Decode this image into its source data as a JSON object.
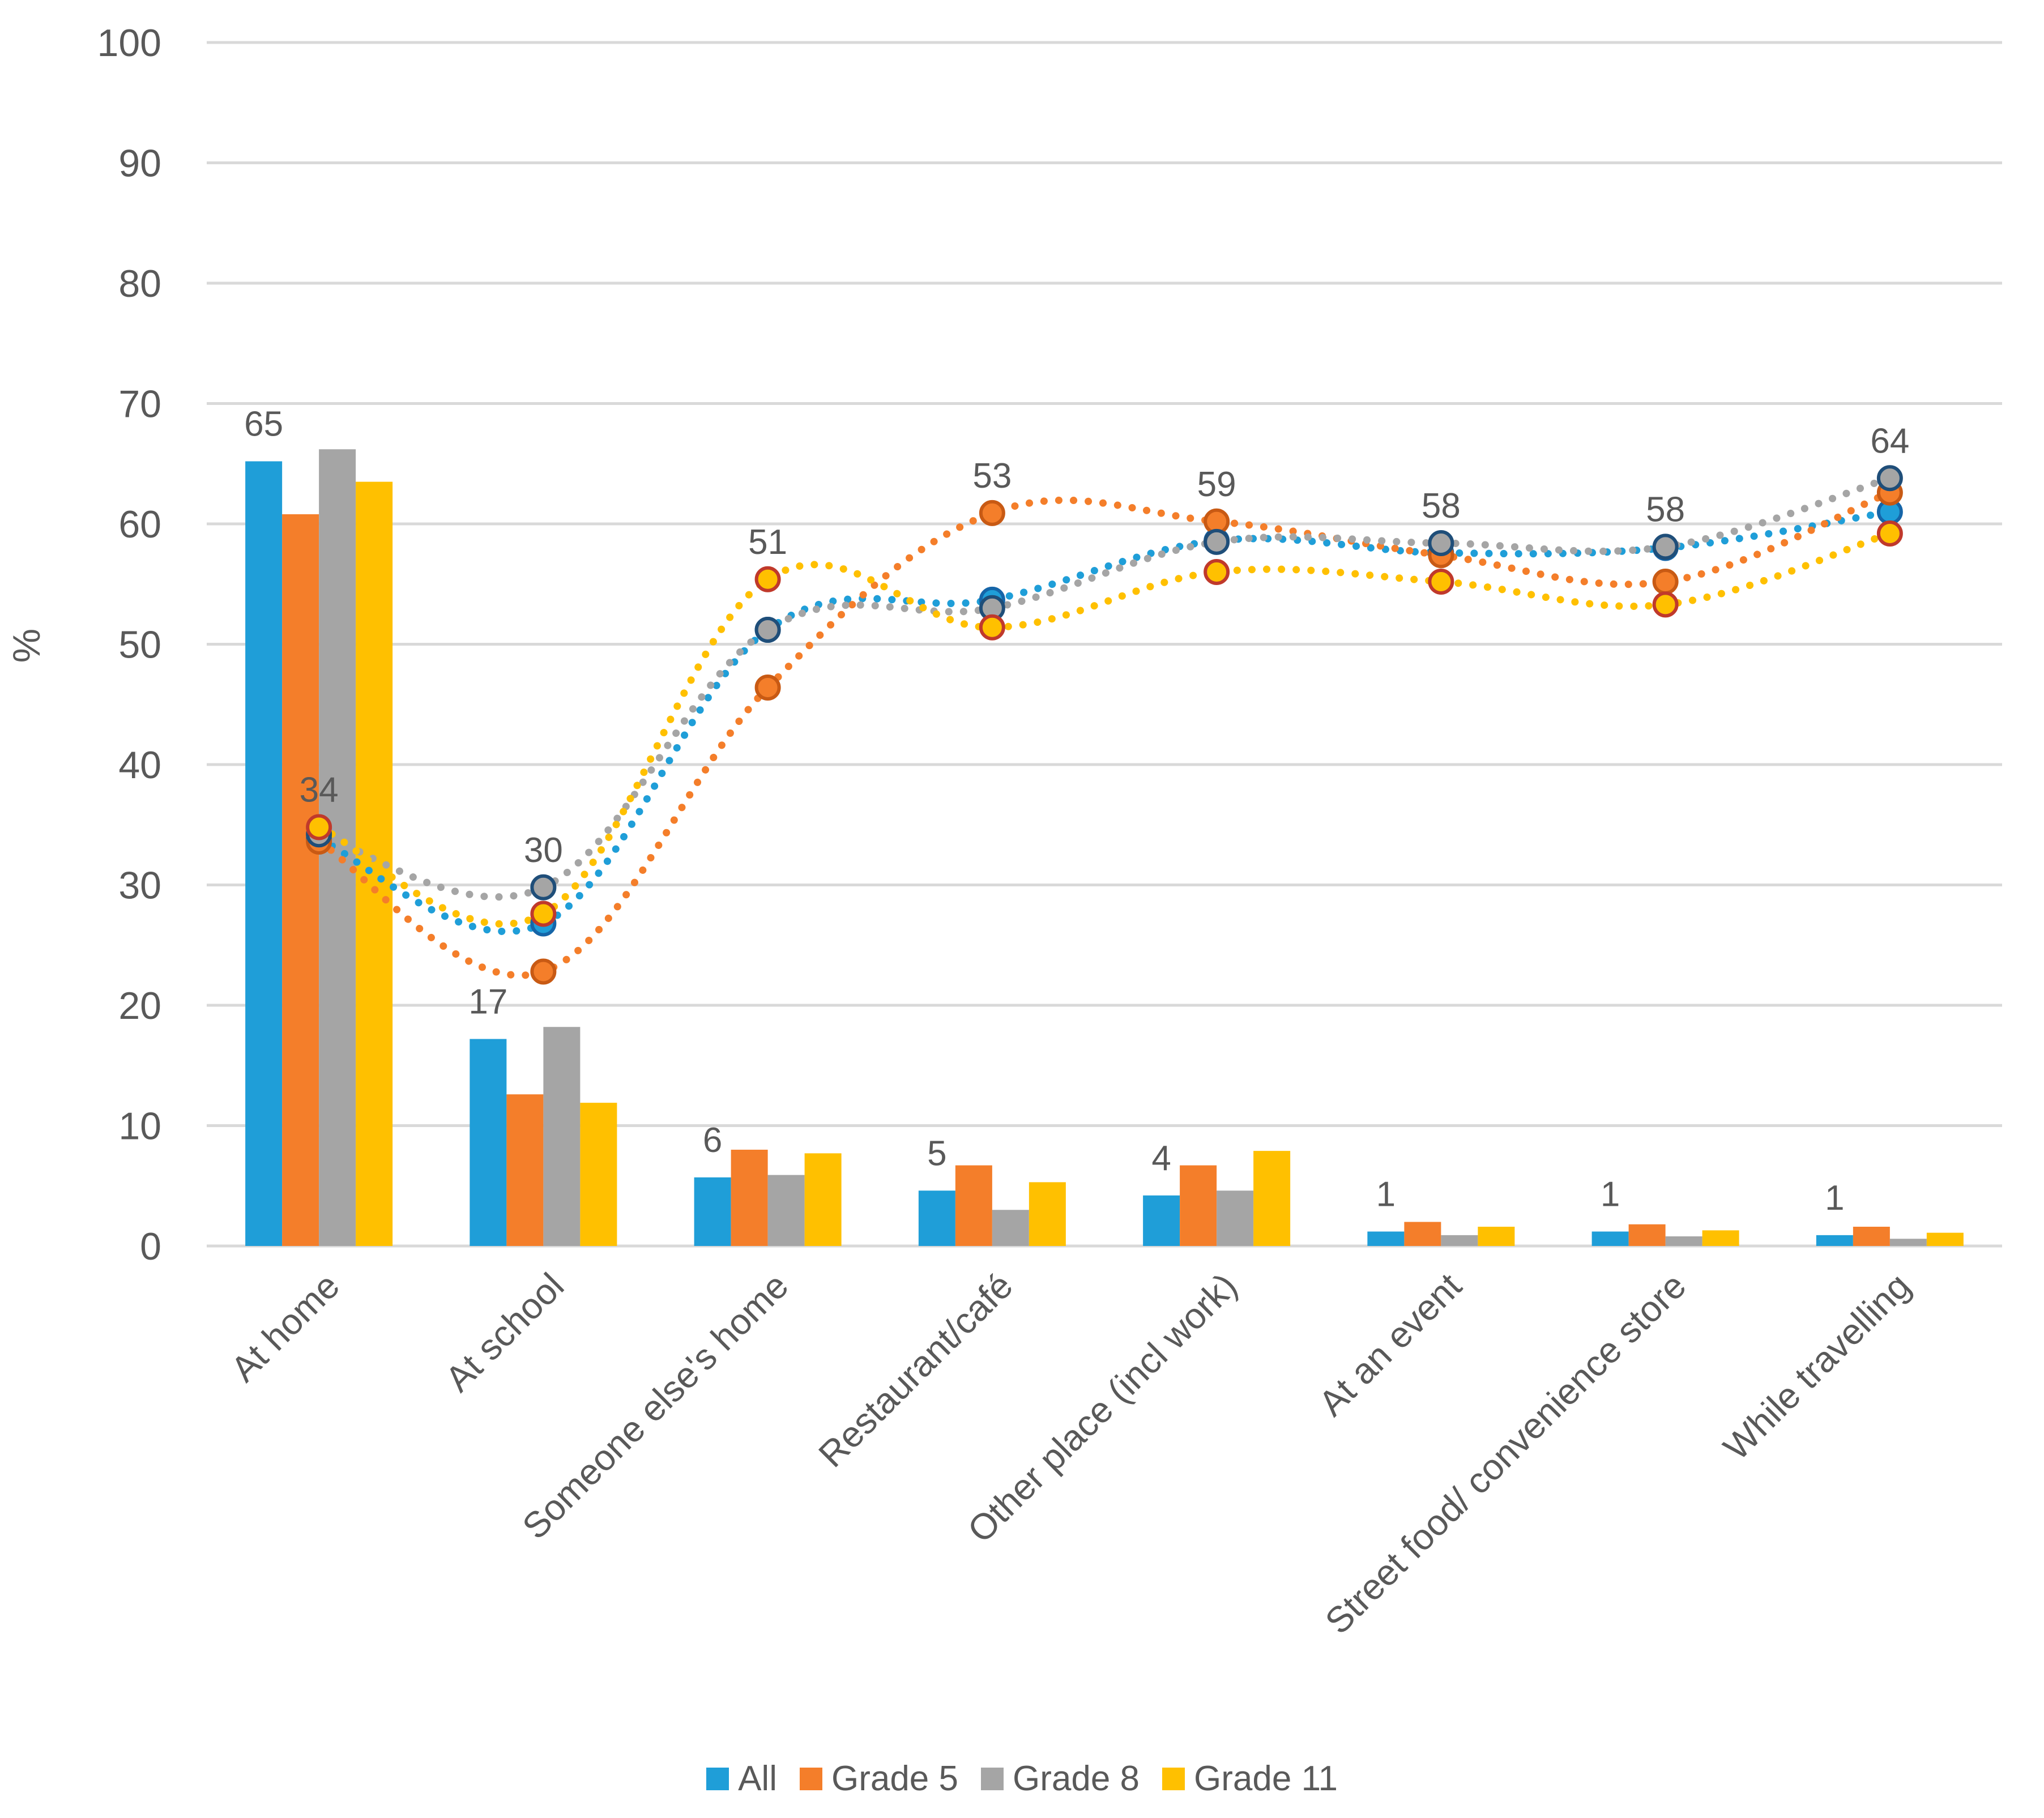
{
  "chart_data": {
    "type": "bar",
    "title": "",
    "xlabel": "",
    "ylabel": "%",
    "ylim": [
      0,
      100
    ],
    "yticks": [
      "0",
      "10",
      "20",
      "30",
      "40",
      "50",
      "60",
      "70",
      "80",
      "90",
      "100"
    ],
    "grid": true,
    "legend_position": "bottom",
    "categories": [
      "At home",
      "At school",
      "Someone else's home",
      "Restaurant/café",
      "Other place (incl  work)",
      "At an event",
      "Street food/ convenience store",
      "While travelling"
    ],
    "series": [
      {
        "name": "All",
        "color": "#1F9ED8",
        "bar_values": [
          65.2,
          17.2,
          5.7,
          4.6,
          4.2,
          1.2,
          1.2,
          0.9
        ],
        "line_values": [
          33.8,
          26.8,
          51.2,
          53.7,
          58.6,
          57.6,
          58.0,
          61.0
        ]
      },
      {
        "name": "Grade 5",
        "color": "#F47E2A",
        "bar_values": [
          60.8,
          12.6,
          8.0,
          6.7,
          6.7,
          2.0,
          1.8,
          1.6
        ],
        "line_values": [
          33.6,
          22.8,
          46.4,
          60.9,
          60.2,
          57.4,
          55.2,
          62.6
        ]
      },
      {
        "name": "Grade 8",
        "color": "#A5A5A5",
        "bar_values": [
          66.2,
          18.2,
          5.9,
          3.0,
          4.6,
          0.9,
          0.8,
          0.6
        ],
        "line_values": [
          34.2,
          29.8,
          51.2,
          53.0,
          58.5,
          58.4,
          58.1,
          63.8
        ]
      },
      {
        "name": "Grade 11",
        "color": "#FFC000",
        "bar_values": [
          63.5,
          11.9,
          7.7,
          5.3,
          7.9,
          1.6,
          1.3,
          1.1
        ],
        "line_values": [
          34.8,
          27.6,
          55.4,
          51.4,
          56.0,
          55.2,
          53.3,
          59.2
        ]
      }
    ],
    "bar_labels": [
      "65",
      "17",
      "6",
      "5",
      "4",
      "1",
      "1",
      "1"
    ],
    "line_labels": [
      "34",
      "30",
      "51",
      "53",
      "59",
      "58",
      "58",
      "64"
    ]
  },
  "legend": {
    "items": [
      {
        "label": "All",
        "color": "#1F9ED8"
      },
      {
        "label": "Grade 5",
        "color": "#F47E2A"
      },
      {
        "label": "Grade 8",
        "color": "#A5A5A5"
      },
      {
        "label": "Grade 11",
        "color": "#FFC000"
      }
    ]
  }
}
